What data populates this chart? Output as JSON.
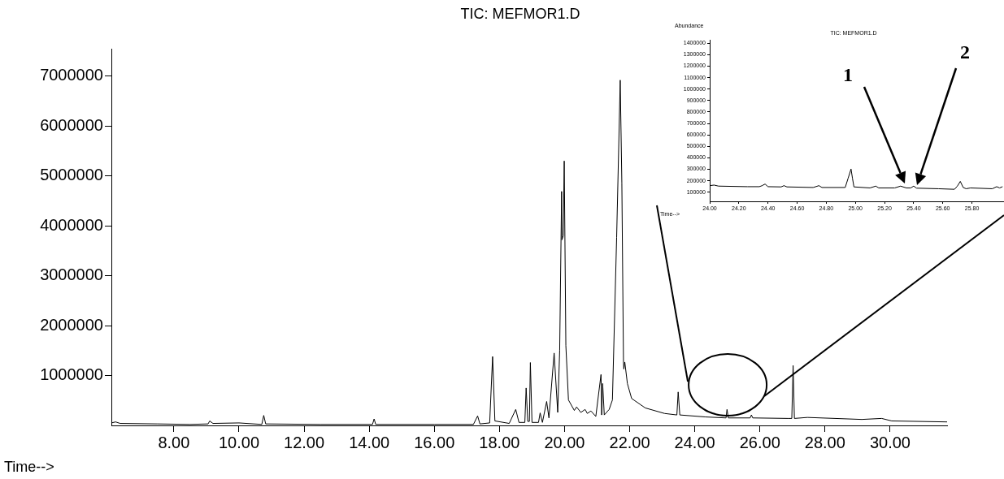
{
  "chart_data": [
    {
      "type": "line",
      "title": "TIC: MEFMOR1.D",
      "xlabel": "Time-->",
      "xlim": [
        6.08,
        31.75
      ],
      "ylim": [
        0,
        7550000
      ],
      "xticks": [
        {
          "value": 8,
          "label": "8.00"
        },
        {
          "value": 10,
          "label": "10.00"
        },
        {
          "value": 12,
          "label": "12.00"
        },
        {
          "value": 14,
          "label": "14.00"
        },
        {
          "value": 16,
          "label": "16.00"
        },
        {
          "value": 18,
          "label": "18.00"
        },
        {
          "value": 20,
          "label": "20.00"
        },
        {
          "value": 22,
          "label": "22.00"
        },
        {
          "value": 24,
          "label": "24.00"
        },
        {
          "value": 26,
          "label": "26.00"
        },
        {
          "value": 28,
          "label": "28.00"
        },
        {
          "value": 30,
          "label": "30.00"
        }
      ],
      "yticks": [
        1000000,
        2000000,
        3000000,
        4000000,
        5000000,
        6000000,
        7000000
      ],
      "marker": "none",
      "line_style": "solid",
      "series": [
        {
          "color": "#000000",
          "x": [
            6.08,
            6.21,
            6.35,
            7.5,
            8.5,
            9.05,
            9.1,
            9.2,
            10.0,
            10.7,
            10.76,
            10.82,
            12.5,
            14.1,
            14.15,
            14.2,
            16.0,
            17.2,
            17.33,
            17.4,
            17.7,
            17.79,
            17.86,
            18.3,
            18.5,
            18.6,
            18.78,
            18.82,
            18.87,
            18.92,
            18.95,
            19.0,
            19.2,
            19.25,
            19.32,
            19.45,
            19.52,
            19.68,
            19.79,
            19.85,
            19.91,
            19.92,
            19.96,
            19.99,
            20.04,
            20.12,
            20.3,
            20.37,
            20.5,
            20.63,
            20.7,
            20.81,
            20.96,
            21.12,
            21.14,
            21.17,
            21.22,
            21.37,
            21.47,
            21.6,
            21.71,
            21.76,
            21.81,
            21.82,
            21.85,
            21.93,
            22.06,
            22.48,
            23.07,
            23.45,
            23.49,
            23.54,
            24.33,
            24.96,
            24.99,
            25.03,
            25.7,
            25.74,
            25.78,
            26.86,
            26.98,
            27.02,
            27.06,
            27.46,
            29.13,
            29.74,
            30.05,
            31.75
          ],
          "values": [
            50000,
            70000,
            40000,
            30000,
            20000,
            30000,
            90000,
            40000,
            50000,
            20000,
            200000,
            30000,
            20000,
            20000,
            130000,
            20000,
            20000,
            20000,
            190000,
            30000,
            50000,
            1380000,
            90000,
            40000,
            320000,
            60000,
            60000,
            750000,
            80000,
            80000,
            1260000,
            60000,
            60000,
            250000,
            60000,
            480000,
            150000,
            1450000,
            260000,
            1500000,
            4690000,
            3720000,
            3800000,
            5300000,
            1600000,
            510000,
            300000,
            370000,
            260000,
            320000,
            240000,
            290000,
            180000,
            1020000,
            210000,
            840000,
            210000,
            320000,
            510000,
            3770000,
            6920000,
            4860000,
            1270000,
            1130000,
            1270000,
            840000,
            540000,
            350000,
            240000,
            210000,
            670000,
            210000,
            170000,
            150000,
            320000,
            150000,
            150000,
            210000,
            150000,
            140000,
            140000,
            1200000,
            140000,
            160000,
            120000,
            140000,
            90000,
            70000
          ]
        }
      ]
    },
    {
      "type": "line",
      "title": "TIC: MEFMOR1.D",
      "xlabel": "Time-->",
      "ylabel": "Abundance",
      "xlim": [
        24.0,
        26.02
      ],
      "ylim": [
        20000,
        1430000
      ],
      "xticks": [
        {
          "value": 24,
          "label": "24.00"
        },
        {
          "value": 24.2,
          "label": "24.20"
        },
        {
          "value": 24.4,
          "label": "24.40"
        },
        {
          "value": 24.6,
          "label": "24.60"
        },
        {
          "value": 24.8,
          "label": "24.80"
        },
        {
          "value": 25,
          "label": "25.00"
        },
        {
          "value": 25.2,
          "label": "25.20"
        },
        {
          "value": 25.4,
          "label": "25.40"
        },
        {
          "value": 25.6,
          "label": "25.60"
        },
        {
          "value": 25.8,
          "label": "25.80"
        }
      ],
      "yticks": [
        100000,
        200000,
        300000,
        400000,
        500000,
        600000,
        700000,
        800000,
        900000,
        1000000,
        1100000,
        1200000,
        1300000,
        1400000
      ],
      "marker": "none",
      "line_style": "solid",
      "annotations": [
        "1",
        "2"
      ],
      "series": [
        {
          "color": "#000000",
          "x": [
            24.0,
            24.03,
            24.06,
            24.26,
            24.34,
            24.36,
            24.38,
            24.4,
            24.49,
            24.51,
            24.53,
            24.71,
            24.75,
            24.77,
            24.93,
            24.95,
            24.97,
            24.98,
            24.99,
            25.1,
            25.14,
            25.16,
            25.27,
            25.31,
            25.35,
            25.38,
            25.4,
            25.42,
            25.57,
            25.68,
            25.7,
            25.72,
            25.74,
            25.76,
            25.79,
            25.94,
            25.97,
            25.99,
            26.01
          ],
          "values": [
            157000,
            162000,
            153000,
            148000,
            148000,
            157000,
            171000,
            148000,
            146000,
            157000,
            146000,
            141000,
            157000,
            141000,
            141000,
            221000,
            302000,
            221000,
            146000,
            137000,
            153000,
            137000,
            137000,
            153000,
            137000,
            137000,
            153000,
            135000,
            130000,
            125000,
            153000,
            194000,
            141000,
            130000,
            137000,
            130000,
            148000,
            137000,
            148000
          ]
        }
      ]
    }
  ]
}
